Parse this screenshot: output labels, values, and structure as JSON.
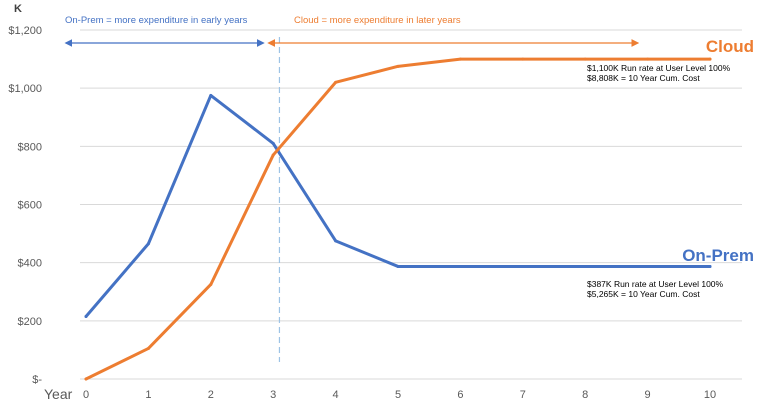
{
  "chart_data": {
    "type": "line",
    "ylabel": "K",
    "xlabel": "Year",
    "x": [
      0,
      1,
      2,
      3,
      4,
      5,
      6,
      7,
      8,
      9,
      10
    ],
    "y_ticks": [
      "$-",
      "$200",
      "$400",
      "$600",
      "$800",
      "$1,000",
      "$1,200"
    ],
    "y_tick_values": [
      0,
      200,
      400,
      600,
      800,
      1000,
      1200
    ],
    "ylim": [
      0,
      1200
    ],
    "xlim": [
      0,
      10
    ],
    "grid": "horizontal",
    "series": [
      {
        "name": "On-Prem",
        "color": "#4472C4",
        "values": [
          215,
          465,
          975,
          810,
          475,
          387,
          387,
          387,
          387,
          387,
          387
        ],
        "notes": [
          "$387K Run rate at User Level 100%",
          "$5,265K = 10 Year Cum. Cost"
        ]
      },
      {
        "name": "Cloud",
        "color": "#ED7D31",
        "values": [
          0,
          105,
          325,
          770,
          1020,
          1075,
          1100,
          1100,
          1100,
          1100,
          1100
        ],
        "notes": [
          "$1,100K Run rate at User Level 100%",
          "$8,808K = 10 Year Cum. Cost"
        ]
      }
    ],
    "annotations": [
      {
        "text": "On-Prem = more expenditure in early years",
        "color": "#4472C4",
        "x_from": 0,
        "x_to": 3
      },
      {
        "text": "Cloud = more expenditure in later years",
        "color": "#ED7D31",
        "x_from": 3.25,
        "x_to": 9
      }
    ],
    "divider_x": 3.1
  }
}
